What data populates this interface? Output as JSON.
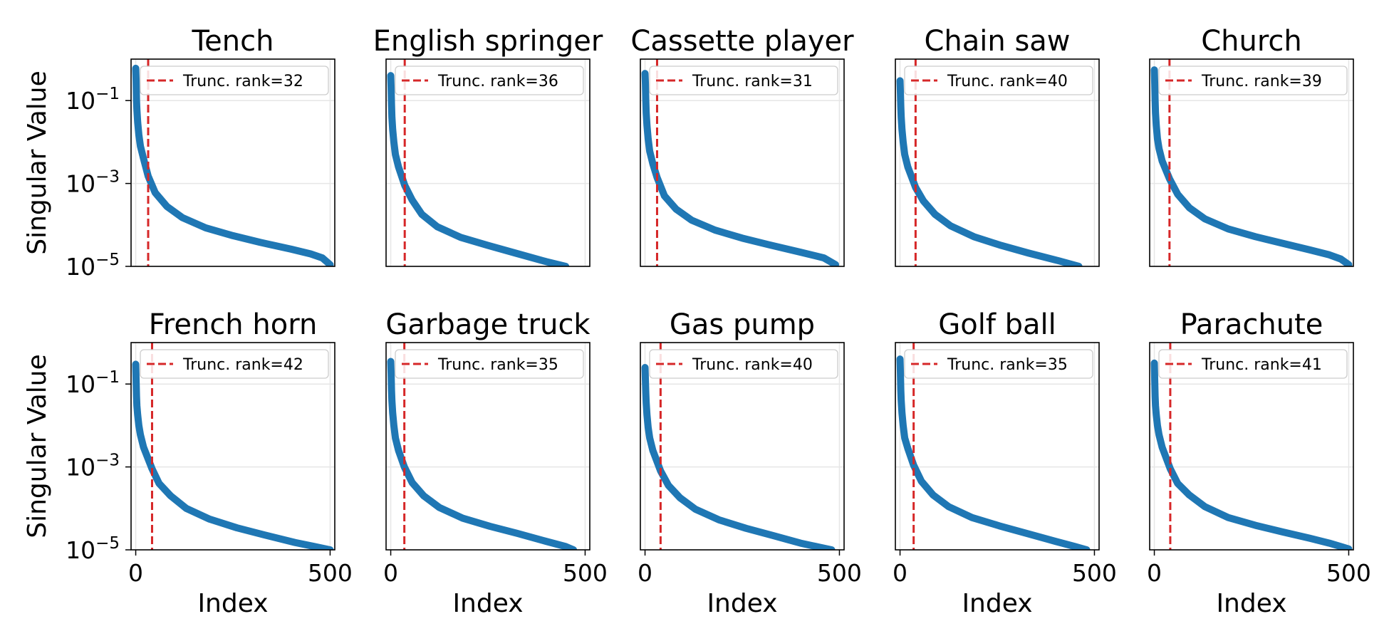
{
  "figure": {
    "colors": {
      "series": "#1f77b4",
      "truncation": "#d62728",
      "grid": "#e6e6e6",
      "axes": "#000000",
      "legend_border": "#cccccc"
    },
    "shared_labels": {
      "ylabel": "Singular Value",
      "xlabel": "Index"
    }
  },
  "chart_data": [
    {
      "type": "line",
      "title": "Tench",
      "xlabel": "",
      "ylabel": "Singular Value",
      "yscale": "log",
      "xlim": [
        -12,
        512
      ],
      "ylim": [
        1e-05,
        1.0
      ],
      "xticks": [],
      "yticks": [
        0.1,
        0.001,
        1e-05
      ],
      "ytick_labels": [
        "10^-1",
        "10^-3",
        "10^-5"
      ],
      "series": [
        {
          "name": "Singular values",
          "x": [
            0,
            1,
            2,
            3,
            5,
            8,
            12,
            20,
            32,
            50,
            80,
            120,
            180,
            250,
            320,
            400,
            450,
            480,
            500
          ],
          "y": [
            0.6,
            0.3,
            0.1,
            0.06,
            0.03,
            0.015,
            0.008,
            0.004,
            0.0015,
            0.0006,
            0.00028,
            0.00015,
            8.5e-05,
            5.5e-05,
            3.8e-05,
            2.6e-05,
            2e-05,
            1.6e-05,
            1.1e-05
          ]
        }
      ],
      "truncation_rank": 32,
      "legend_label": "Trunc. rank=32",
      "legend_position": "upper right",
      "grid": true
    },
    {
      "type": "line",
      "title": "English springer",
      "xlabel": "",
      "ylabel": "",
      "yscale": "log",
      "xlim": [
        -12,
        512
      ],
      "ylim": [
        1e-05,
        1.0
      ],
      "xticks": [],
      "yticks": [],
      "ytick_labels": [],
      "series": [
        {
          "name": "Singular values",
          "x": [
            0,
            1,
            2,
            3,
            5,
            8,
            12,
            20,
            36,
            55,
            80,
            120,
            180,
            250,
            320,
            400,
            450
          ],
          "y": [
            0.4,
            0.2,
            0.08,
            0.04,
            0.02,
            0.01,
            0.005,
            0.0025,
            0.0009,
            0.0004,
            0.00018,
            9e-05,
            5e-05,
            3.2e-05,
            2.1e-05,
            1.3e-05,
            1e-05
          ]
        }
      ],
      "truncation_rank": 36,
      "legend_label": "Trunc. rank=36",
      "legend_position": "upper right",
      "grid": true
    },
    {
      "type": "line",
      "title": "Cassette player",
      "xlabel": "",
      "ylabel": "",
      "yscale": "log",
      "xlim": [
        -12,
        512
      ],
      "ylim": [
        1e-05,
        1.0
      ],
      "xticks": [],
      "yticks": [],
      "ytick_labels": [],
      "series": [
        {
          "name": "Singular values",
          "x": [
            0,
            1,
            2,
            3,
            5,
            8,
            12,
            20,
            31,
            50,
            80,
            120,
            180,
            250,
            320,
            400,
            460,
            490
          ],
          "y": [
            0.45,
            0.25,
            0.1,
            0.05,
            0.025,
            0.012,
            0.006,
            0.003,
            0.0014,
            0.0005,
            0.00024,
            0.00013,
            7.5e-05,
            4.8e-05,
            3.3e-05,
            2.2e-05,
            1.6e-05,
            1.1e-05
          ]
        }
      ],
      "truncation_rank": 31,
      "legend_label": "Trunc. rank=31",
      "legend_position": "upper right",
      "grid": true
    },
    {
      "type": "line",
      "title": "Chain saw",
      "xlabel": "",
      "ylabel": "",
      "yscale": "log",
      "xlim": [
        -12,
        512
      ],
      "ylim": [
        1e-05,
        1.0
      ],
      "xticks": [],
      "yticks": [],
      "ytick_labels": [],
      "series": [
        {
          "name": "Singular values",
          "x": [
            0,
            1,
            2,
            3,
            5,
            8,
            12,
            20,
            40,
            60,
            90,
            130,
            190,
            260,
            330,
            410,
            460
          ],
          "y": [
            0.3,
            0.15,
            0.07,
            0.04,
            0.02,
            0.01,
            0.005,
            0.0025,
            0.0008,
            0.00038,
            0.00018,
            9.5e-05,
            5.2e-05,
            3.2e-05,
            2.1e-05,
            1.35e-05,
            1e-05
          ]
        }
      ],
      "truncation_rank": 40,
      "legend_label": "Trunc. rank=40",
      "legend_position": "upper right",
      "grid": true
    },
    {
      "type": "line",
      "title": "Church",
      "xlabel": "",
      "ylabel": "",
      "yscale": "log",
      "xlim": [
        -12,
        512
      ],
      "ylim": [
        1e-05,
        1.0
      ],
      "xticks": [],
      "yticks": [],
      "ytick_labels": [],
      "series": [
        {
          "name": "Singular values",
          "x": [
            0,
            1,
            2,
            3,
            5,
            8,
            12,
            20,
            39,
            60,
            90,
            130,
            190,
            260,
            330,
            400,
            450,
            480,
            500
          ],
          "y": [
            0.55,
            0.25,
            0.1,
            0.05,
            0.025,
            0.012,
            0.007,
            0.0035,
            0.0013,
            0.00055,
            0.00026,
            0.00014,
            8e-05,
            5.2e-05,
            3.6e-05,
            2.5e-05,
            1.9e-05,
            1.5e-05,
            1.1e-05
          ]
        }
      ],
      "truncation_rank": 39,
      "legend_label": "Trunc. rank=39",
      "legend_position": "upper right",
      "grid": true
    },
    {
      "type": "line",
      "title": "French horn",
      "xlabel": "Index",
      "ylabel": "Singular Value",
      "yscale": "log",
      "xlim": [
        -12,
        512
      ],
      "ylim": [
        1e-05,
        1.0
      ],
      "xticks": [
        0,
        500
      ],
      "yticks": [
        0.1,
        0.001,
        1e-05
      ],
      "ytick_labels": [
        "10^-1",
        "10^-3",
        "10^-5"
      ],
      "series": [
        {
          "name": "Singular values",
          "x": [
            0,
            1,
            2,
            3,
            5,
            8,
            12,
            20,
            42,
            60,
            90,
            130,
            190,
            260,
            330,
            410,
            470,
            500
          ],
          "y": [
            0.3,
            0.12,
            0.05,
            0.03,
            0.018,
            0.01,
            0.006,
            0.003,
            0.0009,
            0.0004,
            0.0002,
            0.0001,
            5.5e-05,
            3.4e-05,
            2.3e-05,
            1.5e-05,
            1.15e-05,
            1e-05
          ]
        }
      ],
      "truncation_rank": 42,
      "legend_label": "Trunc. rank=42",
      "legend_position": "upper right",
      "grid": true
    },
    {
      "type": "line",
      "title": "Garbage truck",
      "xlabel": "Index",
      "ylabel": "",
      "yscale": "log",
      "xlim": [
        -12,
        512
      ],
      "ylim": [
        1e-05,
        1.0
      ],
      "xticks": [
        0,
        500
      ],
      "yticks": [],
      "ytick_labels": [],
      "series": [
        {
          "name": "Singular values",
          "x": [
            0,
            1,
            2,
            3,
            5,
            8,
            12,
            20,
            35,
            55,
            85,
            125,
            185,
            255,
            325,
            400,
            450,
            470
          ],
          "y": [
            0.35,
            0.18,
            0.07,
            0.04,
            0.02,
            0.01,
            0.005,
            0.0025,
            0.001,
            0.00042,
            0.0002,
            0.000105,
            5.8e-05,
            3.7e-05,
            2.5e-05,
            1.6e-05,
            1.2e-05,
            1e-05
          ]
        }
      ],
      "truncation_rank": 35,
      "legend_label": "Trunc. rank=35",
      "legend_position": "upper right",
      "grid": true
    },
    {
      "type": "line",
      "title": "Gas pump",
      "xlabel": "Index",
      "ylabel": "",
      "yscale": "log",
      "xlim": [
        -12,
        512
      ],
      "ylim": [
        1e-05,
        1.0
      ],
      "xticks": [
        0,
        500
      ],
      "yticks": [],
      "ytick_labels": [],
      "series": [
        {
          "name": "Singular values",
          "x": [
            0,
            1,
            2,
            3,
            5,
            8,
            12,
            20,
            40,
            60,
            90,
            130,
            190,
            260,
            330,
            400,
            450,
            480
          ],
          "y": [
            0.25,
            0.12,
            0.06,
            0.035,
            0.018,
            0.009,
            0.005,
            0.0025,
            0.0008,
            0.00036,
            0.00018,
            9.5e-05,
            5.3e-05,
            3.3e-05,
            2.2e-05,
            1.45e-05,
            1.15e-05,
            1e-05
          ]
        }
      ],
      "truncation_rank": 40,
      "legend_label": "Trunc. rank=40",
      "legend_position": "upper right",
      "grid": true
    },
    {
      "type": "line",
      "title": "Golf ball",
      "xlabel": "Index",
      "ylabel": "",
      "yscale": "log",
      "xlim": [
        -12,
        512
      ],
      "ylim": [
        1e-05,
        1.0
      ],
      "xticks": [
        0,
        500
      ],
      "yticks": [],
      "ytick_labels": [],
      "series": [
        {
          "name": "Singular values",
          "x": [
            0,
            1,
            2,
            3,
            5,
            8,
            12,
            20,
            35,
            55,
            85,
            125,
            185,
            255,
            325,
            400,
            450,
            480
          ],
          "y": [
            0.4,
            0.18,
            0.07,
            0.04,
            0.02,
            0.01,
            0.005,
            0.0028,
            0.0011,
            0.00045,
            0.00021,
            0.00011,
            6e-05,
            3.8e-05,
            2.5e-05,
            1.6e-05,
            1.2e-05,
            1e-05
          ]
        }
      ],
      "truncation_rank": 35,
      "legend_label": "Trunc. rank=35",
      "legend_position": "upper right",
      "grid": true
    },
    {
      "type": "line",
      "title": "Parachute",
      "xlabel": "Index",
      "ylabel": "",
      "yscale": "log",
      "xlim": [
        -12,
        512
      ],
      "ylim": [
        1e-05,
        1.0
      ],
      "xticks": [
        0,
        500
      ],
      "yticks": [],
      "ytick_labels": [],
      "series": [
        {
          "name": "Singular values",
          "x": [
            0,
            1,
            2,
            3,
            5,
            8,
            12,
            20,
            41,
            60,
            90,
            130,
            190,
            260,
            330,
            400,
            450,
            480,
            500
          ],
          "y": [
            0.32,
            0.12,
            0.05,
            0.03,
            0.018,
            0.01,
            0.006,
            0.003,
            0.0009,
            0.0004,
            0.00021,
            0.00011,
            6e-05,
            3.9e-05,
            2.7e-05,
            1.9e-05,
            1.45e-05,
            1.2e-05,
            1.05e-05
          ]
        }
      ],
      "truncation_rank": 41,
      "legend_label": "Trunc. rank=41",
      "legend_position": "upper right",
      "grid": true
    }
  ]
}
